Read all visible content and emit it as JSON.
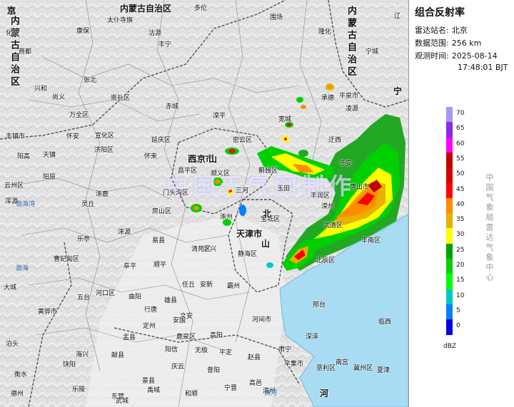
{
  "panel": {
    "title": "组合反射率",
    "station_label": "雷达站名:",
    "station_value": "北京",
    "range_label": "数据范围:",
    "range_value": "256 km",
    "time_label": "观测时间:",
    "time_date": "2025-08-14",
    "time_clock": "17:48:01 BJT",
    "center_name": "中国气象局雷达气象中心"
  },
  "legend": {
    "unit": "dBZ",
    "levels": [
      {
        "value": "70",
        "color": "#a899e8"
      },
      {
        "value": "65",
        "color": "#8a2be2"
      },
      {
        "value": "60",
        "color": "#ff00ff"
      },
      {
        "value": "55",
        "color": "#c00000"
      },
      {
        "value": "50",
        "color": "#d40000"
      },
      {
        "value": "45",
        "color": "#ff0000"
      },
      {
        "value": "40",
        "color": "#ff8c00"
      },
      {
        "value": "35",
        "color": "#e8b000"
      },
      {
        "value": "30",
        "color": "#ffff00"
      },
      {
        "value": "25",
        "color": "#00a000"
      },
      {
        "value": "20",
        "color": "#00d000"
      },
      {
        "value": "15",
        "color": "#00ff00"
      },
      {
        "value": "10",
        "color": "#00c8c8"
      },
      {
        "value": "5",
        "color": "#0080ff"
      },
      {
        "value": "0",
        "color": "#0000e0"
      }
    ]
  },
  "map": {
    "watermark": "中国天气网制作",
    "places": [
      {
        "t": "内蒙古自治区",
        "c": "big"
      },
      {
        "t": "多伦"
      },
      {
        "t": "围场"
      },
      {
        "t": "内蒙古自治区",
        "c": "vert"
      },
      {
        "t": "辽"
      },
      {
        "t": "宁",
        "c": "big"
      },
      {
        "t": "内蒙古自治区",
        "c": "vert"
      },
      {
        "t": "化德"
      },
      {
        "t": "康保"
      },
      {
        "t": "太仆寺旗"
      },
      {
        "t": "沽源"
      },
      {
        "t": "隆化"
      },
      {
        "t": "宁城"
      },
      {
        "t": "商都"
      },
      {
        "t": "张北"
      },
      {
        "t": "丰宁"
      },
      {
        "t": "兴和"
      },
      {
        "t": "尚义"
      },
      {
        "t": "崇礼区"
      },
      {
        "t": "承德"
      },
      {
        "t": "平泉市"
      },
      {
        "t": "凌源"
      },
      {
        "t": "万全区"
      },
      {
        "t": "赤城"
      },
      {
        "t": "滦平"
      },
      {
        "t": "宽城"
      },
      {
        "t": "丰镇市"
      },
      {
        "t": "怀安"
      },
      {
        "t": "宣化区"
      },
      {
        "t": "延庆区"
      },
      {
        "t": "密云区"
      },
      {
        "t": "迁西"
      },
      {
        "t": "阳高"
      },
      {
        "t": "天镇"
      },
      {
        "t": "怀来"
      },
      {
        "t": "北京市",
        "c": "big"
      },
      {
        "t": "平谷区"
      },
      {
        "t": "迁安"
      },
      {
        "t": "云州区"
      },
      {
        "t": "阳原"
      },
      {
        "t": "昌平区"
      },
      {
        "t": "顺义区"
      },
      {
        "t": "蓟州区"
      },
      {
        "t": "玉田"
      },
      {
        "t": "唐山市"
      },
      {
        "t": "浑源"
      },
      {
        "t": "涿鹿"
      },
      {
        "t": "门头沟区"
      },
      {
        "t": "三河"
      },
      {
        "t": "丰润区"
      },
      {
        "t": "滦州"
      },
      {
        "t": "灵丘"
      },
      {
        "t": "房山区"
      },
      {
        "t": "宝坻区"
      },
      {
        "t": "涿州"
      },
      {
        "t": "天津市",
        "c": "big"
      },
      {
        "t": "武清区"
      },
      {
        "t": "丰南区"
      },
      {
        "t": "乐亭"
      },
      {
        "t": "涞源"
      },
      {
        "t": "易县"
      },
      {
        "t": "定兴"
      },
      {
        "t": "霸州"
      },
      {
        "t": "静海区"
      },
      {
        "t": "北辰区"
      },
      {
        "t": "曹妃甸区"
      },
      {
        "t": "阜平"
      },
      {
        "t": "顺平"
      },
      {
        "t": "清苑区"
      },
      {
        "t": "雄县"
      },
      {
        "t": "任丘"
      },
      {
        "t": "大城"
      },
      {
        "t": "五台"
      },
      {
        "t": "曲阳"
      },
      {
        "t": "安新"
      },
      {
        "t": "文安"
      },
      {
        "t": "河间市"
      },
      {
        "t": "黄骅市"
      },
      {
        "t": "行唐"
      },
      {
        "t": "定州"
      },
      {
        "t": "安国"
      },
      {
        "t": "高阳"
      },
      {
        "t": "肃宁"
      },
      {
        "t": "泊头"
      },
      {
        "t": "海兴"
      },
      {
        "t": "盂县"
      },
      {
        "t": "鹿泉区"
      },
      {
        "t": "无极"
      },
      {
        "t": "深泽"
      },
      {
        "t": "饶阳"
      },
      {
        "t": "献县"
      },
      {
        "t": "阳信"
      },
      {
        "t": "平定"
      },
      {
        "t": "赵县"
      },
      {
        "t": "辛集市"
      },
      {
        "t": "衡水"
      },
      {
        "t": "景县"
      },
      {
        "t": "庆云"
      },
      {
        "t": "昔阳"
      },
      {
        "t": "高邑"
      },
      {
        "t": "冀州区"
      },
      {
        "t": "德州"
      },
      {
        "t": "乐陵"
      },
      {
        "t": "东营"
      },
      {
        "t": "和顺"
      },
      {
        "t": "宁晋"
      },
      {
        "t": "南宫"
      },
      {
        "t": "武城"
      },
      {
        "t": "禹城"
      },
      {
        "t": "滨州"
      },
      {
        "t": "垦利区"
      },
      {
        "t": "邢台"
      },
      {
        "t": "临西"
      },
      {
        "t": "夏津"
      },
      {
        "t": "济阳区"
      },
      {
        "t": "河口区"
      },
      {
        "t": "渤海湾",
        "c": "sea"
      },
      {
        "t": "渤海",
        "c": "sea"
      },
      {
        "t": "黄河",
        "c": "sea"
      },
      {
        "t": "河",
        "c": "big"
      },
      {
        "t": "北",
        "c": "big"
      },
      {
        "t": "山",
        "c": "big"
      },
      {
        "t": "西",
        "c": "big"
      },
      {
        "t": "山",
        "c": "big"
      },
      {
        "t": "东",
        "c": "big"
      },
      {
        "t": "天",
        "c": "big"
      },
      {
        "t": "津",
        "c": "big"
      },
      {
        "t": "北",
        "c": "big"
      },
      {
        "t": "京",
        "c": "big"
      }
    ]
  }
}
